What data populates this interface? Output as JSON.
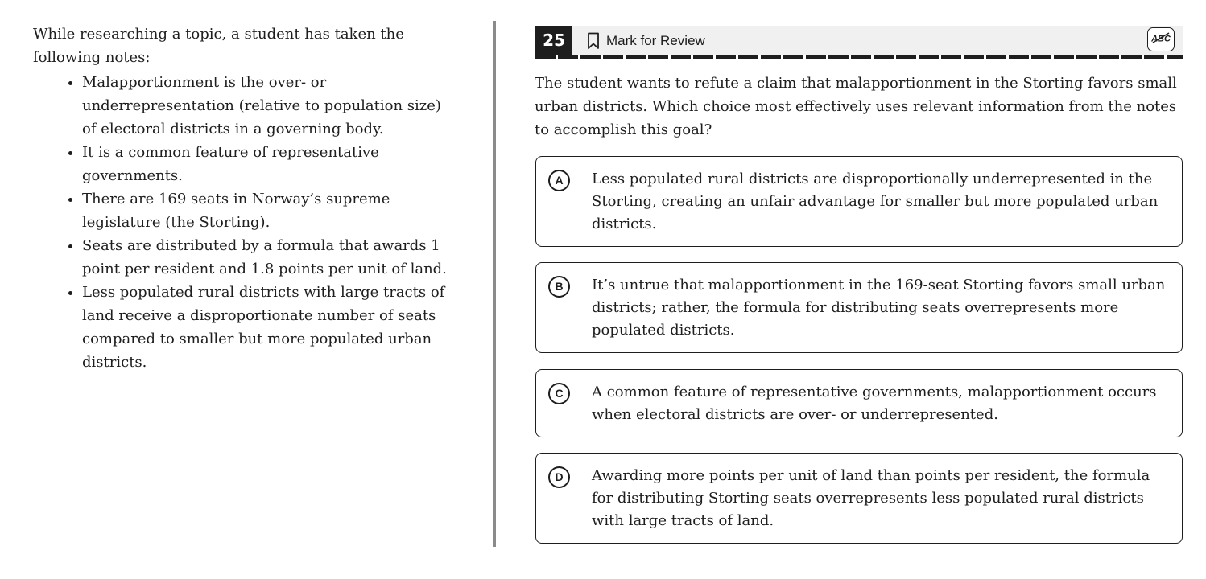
{
  "passage": {
    "intro": "While researching a topic, a student has taken the following notes:",
    "notes": [
      "Malapportionment is the over- or underrepresentation (relative to population size) of electoral districts in a governing body.",
      "It is a common feature of representative governments.",
      "There are 169 seats in Norway’s supreme legislature (the Storting).",
      "Seats are distributed by a formula that awards 1 point per resident and 1.8 points per unit of land.",
      "Less populated rural districts with large tracts of land receive a disproportionate number of seats compared to smaller but more populated urban districts."
    ]
  },
  "header": {
    "question_number": "25",
    "mark_review_label": "Mark for Review",
    "bookmark_icon": "bookmark-outline-icon",
    "abc_icon": "abc-strikethrough-icon"
  },
  "question": {
    "stem": "The student wants to refute a claim that malapportionment in the Storting favors small urban districts. Which choice most effectively uses relevant information from the notes to accomplish this goal?"
  },
  "choices": [
    {
      "letter": "A",
      "text": "Less populated rural districts are disproportionally underrepresented in the Storting, creating an unfair advantage for smaller but more populated urban districts."
    },
    {
      "letter": "B",
      "text": "It’s untrue that malapportionment in the 169-seat Storting favors small urban districts; rather, the formula for distributing seats overrepresents more populated districts."
    },
    {
      "letter": "C",
      "text": "A common feature of representative governments, malapportionment occurs when electoral districts are over- or underrepresented."
    },
    {
      "letter": "D",
      "text": "Awarding more points per unit of land than points per resident, the formula for distributing Storting seats overrepresents less populated rural districts with large tracts of land."
    }
  ],
  "colors": {
    "text": "#1e1e1e",
    "header_bg": "#f0f0f0",
    "divider": "#8a8a8a"
  }
}
